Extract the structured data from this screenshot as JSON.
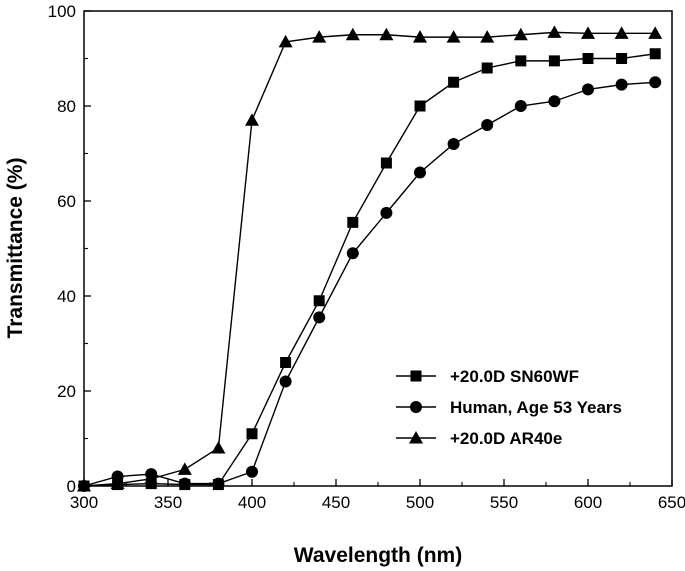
{
  "chart_data": {
    "type": "line",
    "xlabel": "Wavelength (nm)",
    "ylabel": "Transmittance (%)",
    "xlim": [
      300,
      650
    ],
    "ylim": [
      0,
      100
    ],
    "xticks": [
      300,
      350,
      400,
      450,
      500,
      550,
      600,
      650
    ],
    "yticks": [
      0,
      20,
      40,
      60,
      80,
      100
    ],
    "grid": false,
    "legend_position": "bottom-right",
    "colors": {
      "line": "#000000",
      "background": "#ffffff"
    },
    "series": [
      {
        "name": "+20.0D SN60WF",
        "marker": "square",
        "x": [
          300,
          320,
          340,
          360,
          380,
          400,
          420,
          440,
          460,
          480,
          500,
          520,
          540,
          560,
          580,
          600,
          620,
          640
        ],
        "y": [
          0,
          0.3,
          0.5,
          0.3,
          0.3,
          11,
          26,
          39,
          55.5,
          68,
          80,
          85,
          88,
          89.5,
          89.5,
          90,
          90,
          91
        ]
      },
      {
        "name": "Human, Age 53 Years",
        "marker": "circle",
        "x": [
          300,
          320,
          340,
          360,
          380,
          400,
          420,
          440,
          460,
          480,
          500,
          520,
          540,
          560,
          580,
          600,
          620,
          640
        ],
        "y": [
          0,
          2,
          2.5,
          0.5,
          0.5,
          3,
          22,
          35.5,
          49,
          57.5,
          66,
          72,
          76,
          80,
          81,
          83.5,
          84.5,
          85
        ]
      },
      {
        "name": "+20.0D AR40e",
        "marker": "triangle",
        "x": [
          300,
          320,
          340,
          360,
          380,
          400,
          420,
          440,
          460,
          480,
          500,
          520,
          540,
          560,
          580,
          600,
          620,
          640
        ],
        "y": [
          0,
          0.5,
          1.5,
          3.5,
          8,
          77,
          93.5,
          94.5,
          95,
          95,
          94.5,
          94.5,
          94.5,
          95,
          95.5,
          95.3,
          95.3,
          95.3
        ]
      }
    ]
  }
}
